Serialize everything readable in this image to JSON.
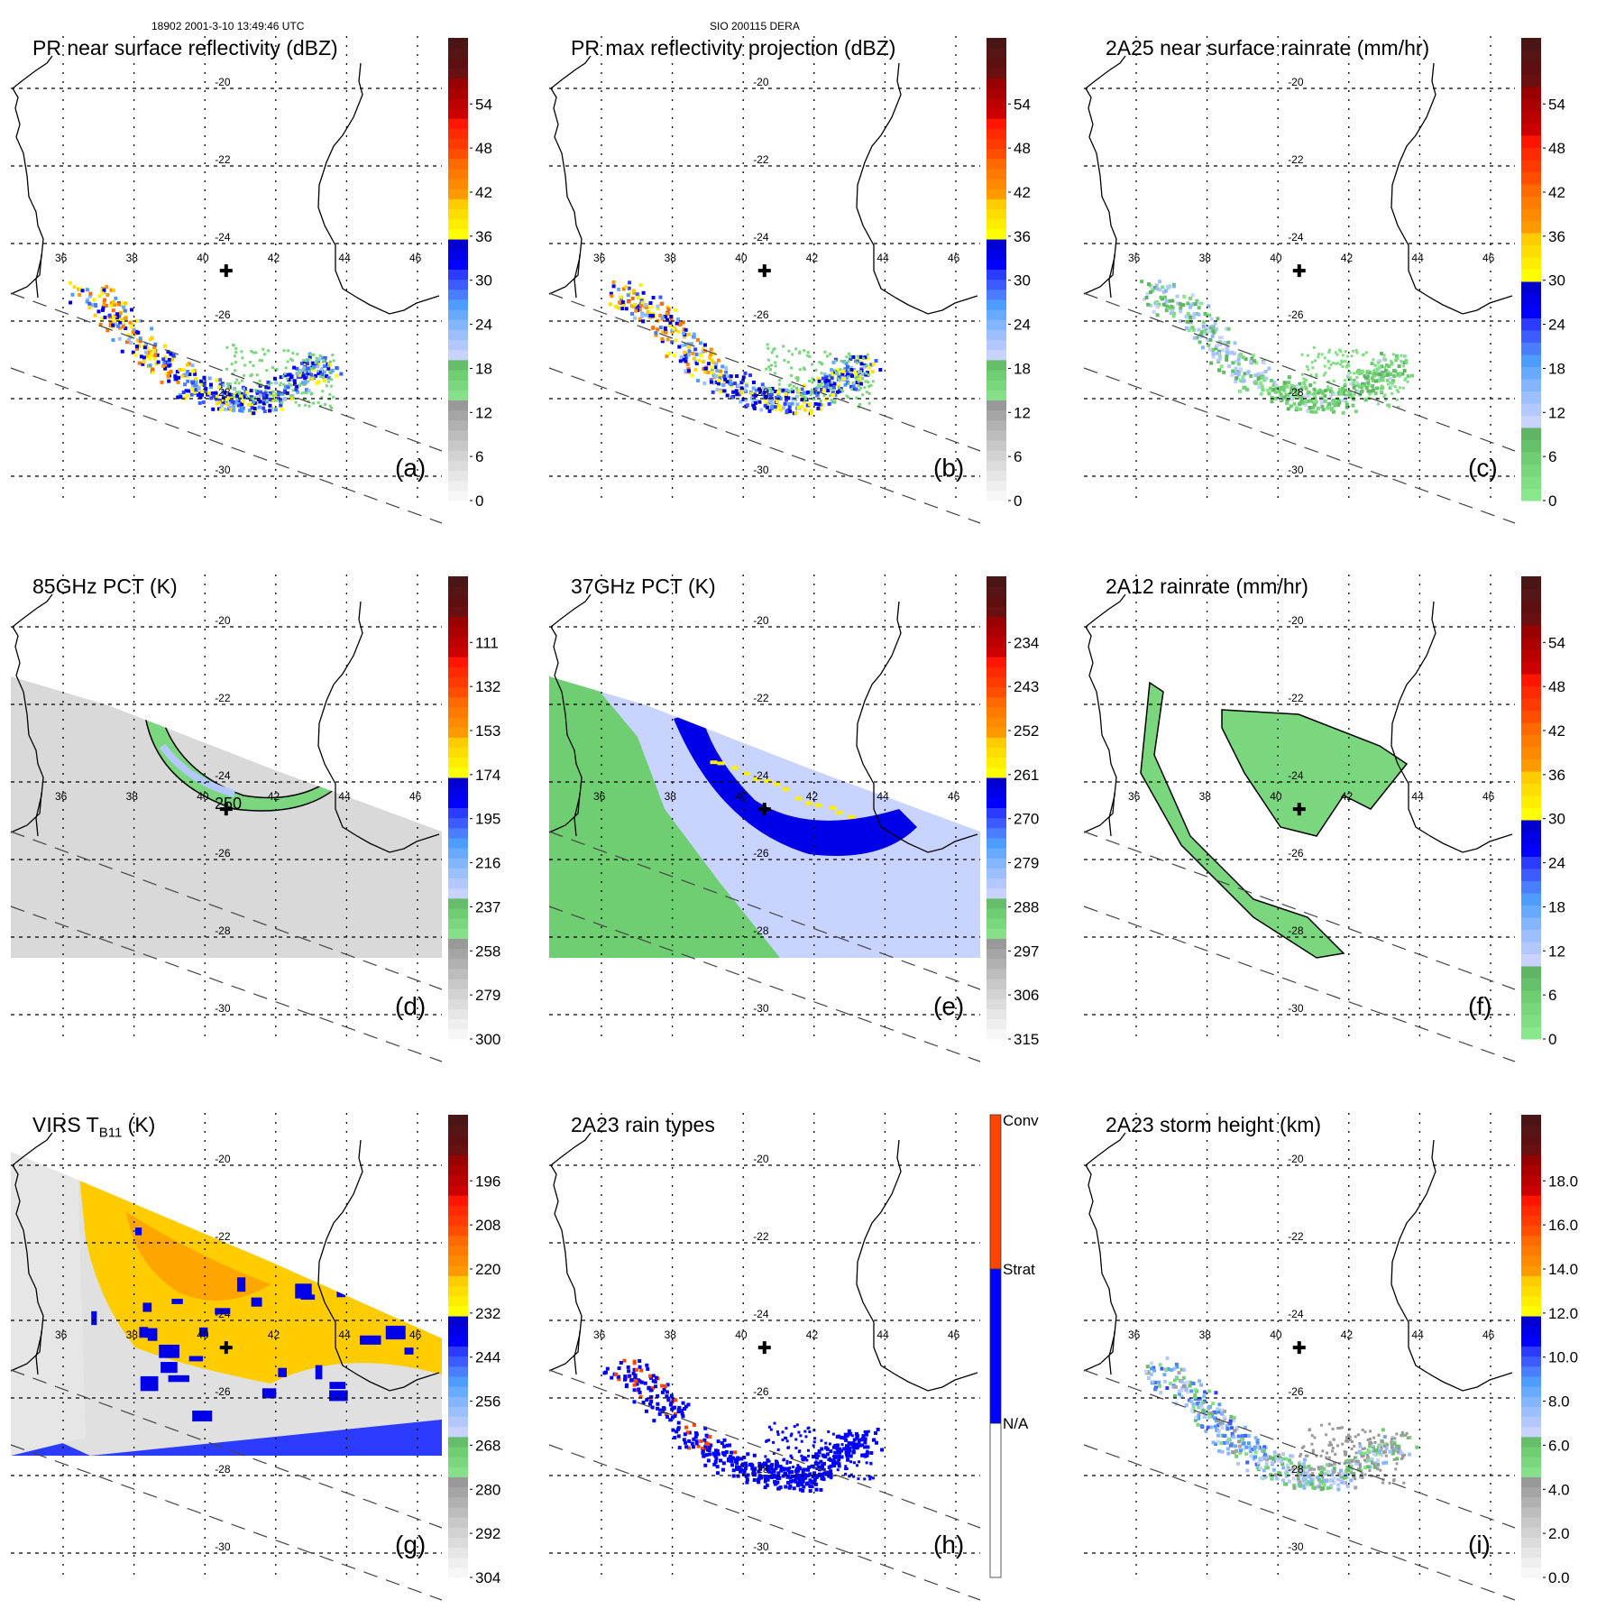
{
  "header": {
    "orbit_time": "18902 2001-3-10 13:49:46 UTC",
    "storm_id": "SIO 200115 DERA"
  },
  "chart_data": [
    {
      "type": "heatmap",
      "id": "a",
      "title": "PR near surface reflectivity (dBZ)",
      "panel_label": "(a)",
      "field": "pr_nsr",
      "lon_ticks": [
        36,
        38,
        40,
        42,
        44,
        46
      ],
      "lat_ticks": [
        -20,
        -22,
        -24,
        -26,
        -28,
        -30
      ],
      "lon_range": [
        34.6,
        47.0
      ],
      "lat_range": [
        -18.3,
        -31.2
      ],
      "storm_center": [
        40.6,
        -24.7
      ],
      "colorbar": {
        "ticks": [
          "0",
          "6",
          "12",
          "18",
          "24",
          "30",
          "36",
          "42",
          "48",
          "54"
        ],
        "range": [
          0,
          60
        ],
        "scheme": "reflectivity"
      },
      "swath": "pr"
    },
    {
      "type": "heatmap",
      "id": "b",
      "title": "PR max reflectivity projection (dBZ)",
      "panel_label": "(b)",
      "field": "pr_max",
      "lon_ticks": [
        36,
        38,
        40,
        42,
        44,
        46
      ],
      "lat_ticks": [
        -20,
        -22,
        -24,
        -26,
        -28,
        -30
      ],
      "lon_range": [
        34.6,
        47.0
      ],
      "lat_range": [
        -18.3,
        -31.2
      ],
      "storm_center": [
        40.6,
        -24.7
      ],
      "colorbar": {
        "ticks": [
          "0",
          "6",
          "12",
          "18",
          "24",
          "30",
          "36",
          "42",
          "48",
          "54"
        ],
        "range": [
          0,
          60
        ],
        "scheme": "reflectivity"
      },
      "swath": "pr"
    },
    {
      "type": "heatmap",
      "id": "c",
      "title": "2A25 near surface rainrate (mm/hr)",
      "panel_label": "(c)",
      "field": "rain25",
      "lon_ticks": [
        36,
        38,
        40,
        42,
        44,
        46
      ],
      "lat_ticks": [
        -20,
        -22,
        -24,
        -26,
        -28,
        -30
      ],
      "lon_range": [
        34.6,
        47.0
      ],
      "lat_range": [
        -18.3,
        -31.2
      ],
      "storm_center": [
        40.6,
        -24.7
      ],
      "colorbar": {
        "ticks": [
          "0",
          "6",
          "12",
          "18",
          "24",
          "30",
          "36",
          "42",
          "48",
          "54"
        ],
        "range": [
          0,
          60
        ],
        "scheme": "rain"
      },
      "swath": "pr"
    },
    {
      "type": "heatmap",
      "id": "d",
      "title": "85GHz PCT (K)",
      "panel_label": "(d)",
      "field": "pct85",
      "contour_label": "250",
      "lon_ticks": [
        36,
        38,
        40,
        42,
        44,
        46
      ],
      "lat_ticks": [
        -20,
        -22,
        -24,
        -26,
        -28,
        -30
      ],
      "lon_range": [
        34.6,
        47.0
      ],
      "lat_range": [
        -18.3,
        -31.2
      ],
      "storm_center": [
        40.6,
        -24.7
      ],
      "colorbar": {
        "ticks": [
          "300",
          "279",
          "258",
          "237",
          "216",
          "195",
          "174",
          "153",
          "132",
          "111"
        ],
        "range": [
          300,
          90
        ],
        "scheme": "reflectivity"
      },
      "swath": "tmi"
    },
    {
      "type": "heatmap",
      "id": "e",
      "title": "37GHz PCT (K)",
      "panel_label": "(e)",
      "field": "pct37",
      "lon_ticks": [
        36,
        38,
        40,
        42,
        44,
        46
      ],
      "lat_ticks": [
        -20,
        -22,
        -24,
        -26,
        -28,
        -30
      ],
      "lon_range": [
        34.6,
        47.0
      ],
      "lat_range": [
        -18.3,
        -31.2
      ],
      "storm_center": [
        40.6,
        -24.7
      ],
      "colorbar": {
        "ticks": [
          "315",
          "306",
          "297",
          "288",
          "279",
          "270",
          "261",
          "252",
          "243",
          "234"
        ],
        "range": [
          315,
          225
        ],
        "scheme": "reflectivity"
      },
      "swath": "tmi"
    },
    {
      "type": "heatmap",
      "id": "f",
      "title": "2A12 rainrate (mm/hr)",
      "panel_label": "(f)",
      "field": "rain12",
      "lon_ticks": [
        36,
        38,
        40,
        42,
        44,
        46
      ],
      "lat_ticks": [
        -20,
        -22,
        -24,
        -26,
        -28,
        -30
      ],
      "lon_range": [
        34.6,
        47.0
      ],
      "lat_range": [
        -18.3,
        -31.2
      ],
      "storm_center": [
        40.6,
        -24.7
      ],
      "colorbar": {
        "ticks": [
          "0",
          "6",
          "12",
          "18",
          "24",
          "30",
          "36",
          "42",
          "48",
          "54"
        ],
        "range": [
          0,
          60
        ],
        "scheme": "rain"
      },
      "swath": "pr"
    },
    {
      "type": "heatmap",
      "id": "g",
      "title": "VIRS T",
      "title_sub": "B11",
      "title_suffix": " (K)",
      "panel_label": "(g)",
      "field": "virs",
      "lon_ticks": [
        36,
        38,
        40,
        42,
        44,
        46
      ],
      "lat_ticks": [
        -20,
        -22,
        -24,
        -26,
        -28,
        -30
      ],
      "lon_range": [
        34.6,
        47.0
      ],
      "lat_range": [
        -18.3,
        -31.2
      ],
      "storm_center": [
        40.6,
        -24.7
      ],
      "colorbar": {
        "ticks": [
          "304",
          "292",
          "280",
          "268",
          "256",
          "244",
          "232",
          "220",
          "208",
          "196"
        ],
        "range": [
          304,
          184
        ],
        "scheme": "reflectivity"
      },
      "swath": "pr"
    },
    {
      "type": "heatmap",
      "id": "h",
      "title": "2A23 rain types",
      "panel_label": "(h)",
      "field": "raintype",
      "lon_ticks": [
        36,
        38,
        40,
        42,
        44,
        46
      ],
      "lat_ticks": [
        -20,
        -22,
        -24,
        -26,
        -28,
        -30
      ],
      "lon_range": [
        34.6,
        47.0
      ],
      "lat_range": [
        -18.3,
        -31.2
      ],
      "storm_center": [
        40.6,
        -24.7
      ],
      "colorbar": {
        "categorical": true,
        "categories": [
          "N/A",
          "Strat",
          "Conv"
        ],
        "colors": [
          "#ffffff",
          "#0000ff",
          "#ff4500"
        ]
      },
      "swath": "pr"
    },
    {
      "type": "heatmap",
      "id": "i",
      "title": "2A23 storm height (km)",
      "panel_label": "(i)",
      "field": "height",
      "lon_ticks": [
        36,
        38,
        40,
        42,
        44,
        46
      ],
      "lat_ticks": [
        -20,
        -22,
        -24,
        -26,
        -28,
        -30
      ],
      "lon_range": [
        34.6,
        47.0
      ],
      "lat_range": [
        -18.3,
        -31.2
      ],
      "storm_center": [
        40.6,
        -24.7
      ],
      "colorbar": {
        "ticks": [
          "0.0",
          "2.0",
          "4.0",
          "6.0",
          "8.0",
          "10.0",
          "12.0",
          "14.0",
          "16.0",
          "18.0"
        ],
        "range": [
          0,
          20
        ],
        "scheme": "reflectivity"
      },
      "swath": "pr"
    }
  ],
  "colormaps": {
    "reflectivity": [
      "#f7f7f7",
      "#efefef",
      "#e6e6e6",
      "#dcdcdc",
      "#d2d2d2",
      "#c8c8c8",
      "#bdbdbd",
      "#b1b1b1",
      "#a5a5a5",
      "#999999",
      "#86e08a",
      "#7ad77d",
      "#6fcd72",
      "#66bd6a",
      "#c8d3ff",
      "#b3c8ff",
      "#9cbfff",
      "#84b6ff",
      "#68aaff",
      "#4d9cff",
      "#4a7dff",
      "#3d5cff",
      "#2b3bff",
      "#0000ff",
      "#0000e8",
      "#0000d0",
      "#ffff00",
      "#ffee00",
      "#ffdd00",
      "#ffcc00",
      "#ff9900",
      "#ff8a00",
      "#ff7b00",
      "#ff6a00",
      "#ff4e00",
      "#ff3a00",
      "#ff2a00",
      "#ff1500",
      "#cc0000",
      "#bb0000",
      "#aa0000",
      "#990000",
      "#6a1010",
      "#5e1010",
      "#551515",
      "#4a1515"
    ],
    "rain": [
      "#8ae88c",
      "#80df82",
      "#77d77a",
      "#6fcd72",
      "#66c06a",
      "#5fb563",
      "#c8d3ff",
      "#b3c8ff",
      "#9cbfff",
      "#84b6ff",
      "#68aaff",
      "#4d9cff",
      "#4a7dff",
      "#3d5cff",
      "#2b3bff",
      "#0000ff",
      "#0000e8",
      "#0000d0",
      "#ffff00",
      "#ffee00",
      "#ffdd00",
      "#ffcc00",
      "#ff9900",
      "#ff8a00",
      "#ff7b00",
      "#ff6a00",
      "#ff4e00",
      "#ff3a00",
      "#ff2a00",
      "#ff1500",
      "#cc0000",
      "#bb0000",
      "#aa0000",
      "#990000",
      "#6a1010",
      "#5e1010",
      "#551515",
      "#4a1515"
    ]
  },
  "colors": {
    "conv": "#ff4500",
    "strat": "#0000ff",
    "grid": "#000000"
  }
}
